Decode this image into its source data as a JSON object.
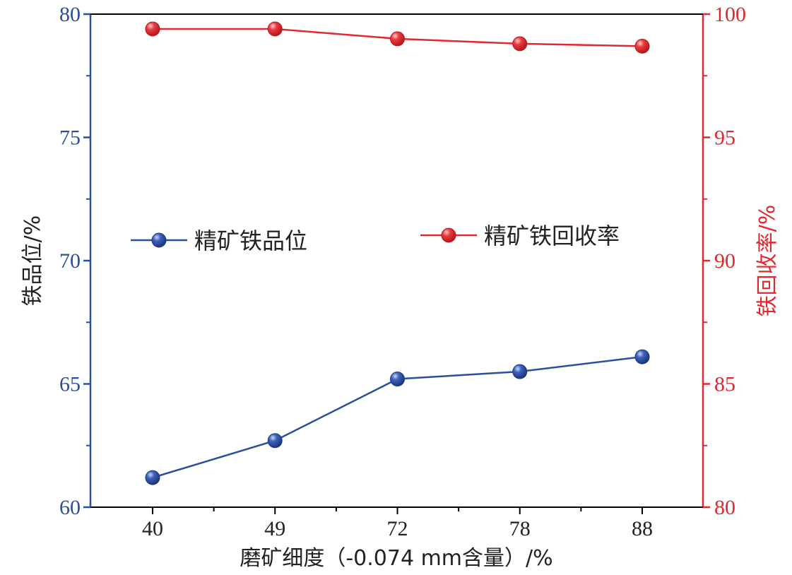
{
  "chart_data": {
    "type": "line",
    "categories": [
      "40",
      "49",
      "72",
      "78",
      "88"
    ],
    "xlabel": "磨矿细度（-0.074 mm含量）/%",
    "series": [
      {
        "name": "精矿铁品位",
        "axis": "left",
        "color": "#2b4e9e",
        "values": [
          61.2,
          62.7,
          65.2,
          65.5,
          66.1
        ]
      },
      {
        "name": "精矿铁回收率",
        "axis": "right",
        "color": "#e0282e",
        "values": [
          99.4,
          99.4,
          99.0,
          98.8,
          98.7
        ]
      }
    ],
    "y_left": {
      "label": "铁品位/%",
      "lim": [
        60,
        80
      ],
      "ticks": [
        "60",
        "65",
        "70",
        "75",
        "80"
      ],
      "color": "#2b4e9e"
    },
    "y_right": {
      "label": "铁回收率/%",
      "lim": [
        80,
        100
      ],
      "ticks": [
        "80",
        "85",
        "90",
        "95",
        "100"
      ],
      "color": "#e0282e"
    },
    "grid": false,
    "legend_placement": "middle"
  }
}
